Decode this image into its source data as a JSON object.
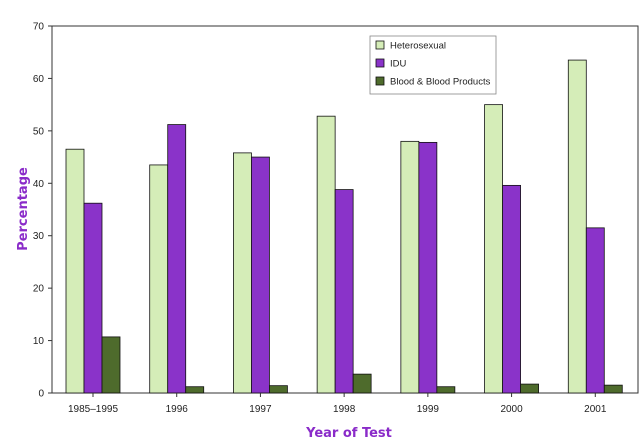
{
  "chart_data": {
    "type": "bar",
    "title": "",
    "xlabel": "Year of Test",
    "ylabel": "Percentage",
    "ylim": [
      0,
      70
    ],
    "yticks": [
      0,
      10,
      20,
      30,
      40,
      50,
      60,
      70
    ],
    "grid": false,
    "legend_position": "top-right",
    "categories": [
      "1985–1995",
      "1996",
      "1997",
      "1998",
      "1999",
      "2000",
      "2001"
    ],
    "series": [
      {
        "name": "Heterosexual",
        "color": "#d5edb8",
        "values": [
          46.5,
          43.5,
          45.8,
          52.8,
          48.0,
          55.0,
          63.5
        ]
      },
      {
        "name": "IDU",
        "color": "#8a33c9",
        "values": [
          36.2,
          51.2,
          45.0,
          38.8,
          47.8,
          39.6,
          31.5
        ]
      },
      {
        "name": "Blood & Blood Products",
        "color": "#4e6b2c",
        "values": [
          10.7,
          1.2,
          1.4,
          3.6,
          1.2,
          1.7,
          1.5
        ]
      }
    ]
  }
}
